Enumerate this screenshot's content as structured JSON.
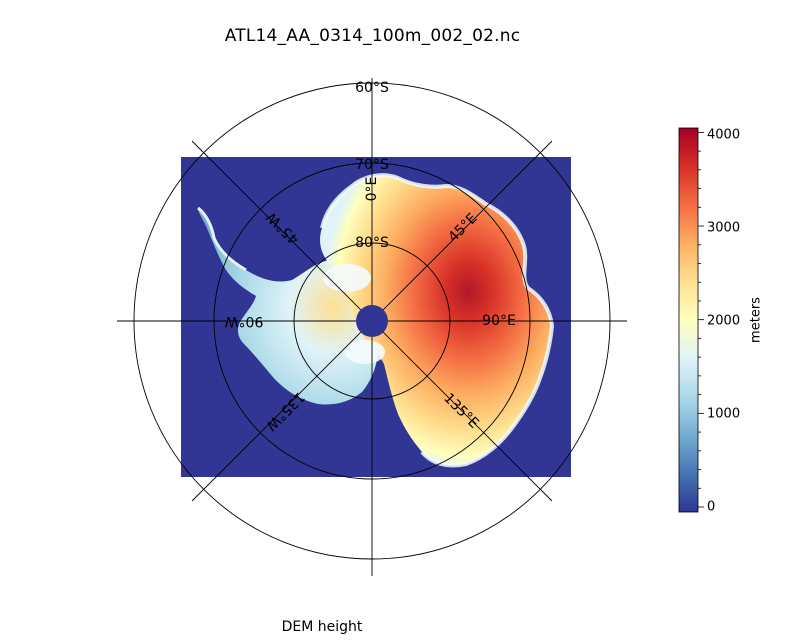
{
  "figure": {
    "title": "ATL14_AA_0314_100m_002_02.nc",
    "caption": "DEM height"
  },
  "map": {
    "projection": "south-polar-stereographic",
    "latitude_circles": [
      "60°S",
      "70°S",
      "80°S"
    ],
    "longitude_labels": [
      "0°E",
      "45°E",
      "90°E",
      "135°E",
      "135°W",
      "90°W",
      "45°W"
    ],
    "ocean_color": "#313695",
    "pole_color": "#313695"
  },
  "colorbar": {
    "label": "meters",
    "ticks": [
      "0",
      "1000",
      "2000",
      "3000",
      "4000"
    ],
    "min": 0,
    "max": 4100,
    "colormap": [
      "#313695",
      "#4575b4",
      "#74add1",
      "#abd9e9",
      "#e0f3f8",
      "#ffffbf",
      "#fee090",
      "#fdae61",
      "#f46d43",
      "#d73027",
      "#a50026"
    ]
  }
}
